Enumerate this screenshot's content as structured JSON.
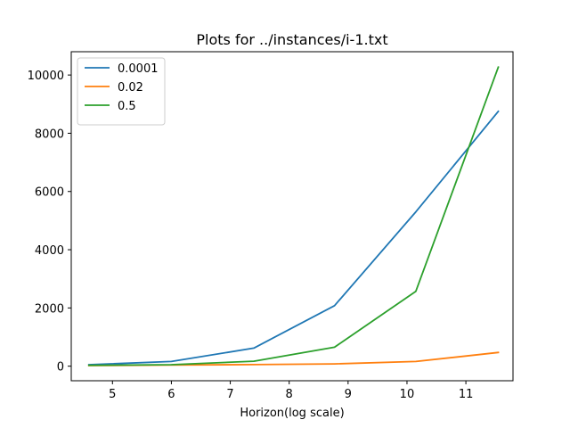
{
  "chart_data": {
    "type": "line",
    "title": "Plots for ../instances/i-1.txt",
    "xlabel": "Horizon(log scale)",
    "ylabel": "",
    "xlim": [
      4.3,
      11.8
    ],
    "ylim": [
      -500,
      10800
    ],
    "xticks": [
      5,
      6,
      7,
      8,
      9,
      10,
      11
    ],
    "yticks": [
      0,
      2000,
      4000,
      6000,
      8000,
      10000
    ],
    "grid": false,
    "legend_position": "top-left",
    "x": [
      4.6,
      6.0,
      7.4,
      8.77,
      10.15,
      11.55
    ],
    "series": [
      {
        "name": "0.0001",
        "color": "#1f77b4",
        "values": [
          50,
          160,
          620,
          2080,
          5300,
          8750
        ]
      },
      {
        "name": "0.02",
        "color": "#ff7f0e",
        "values": [
          20,
          40,
          55,
          80,
          160,
          470
        ]
      },
      {
        "name": "0.5",
        "color": "#2ca02c",
        "values": [
          30,
          50,
          170,
          650,
          2570,
          10270
        ]
      }
    ]
  }
}
